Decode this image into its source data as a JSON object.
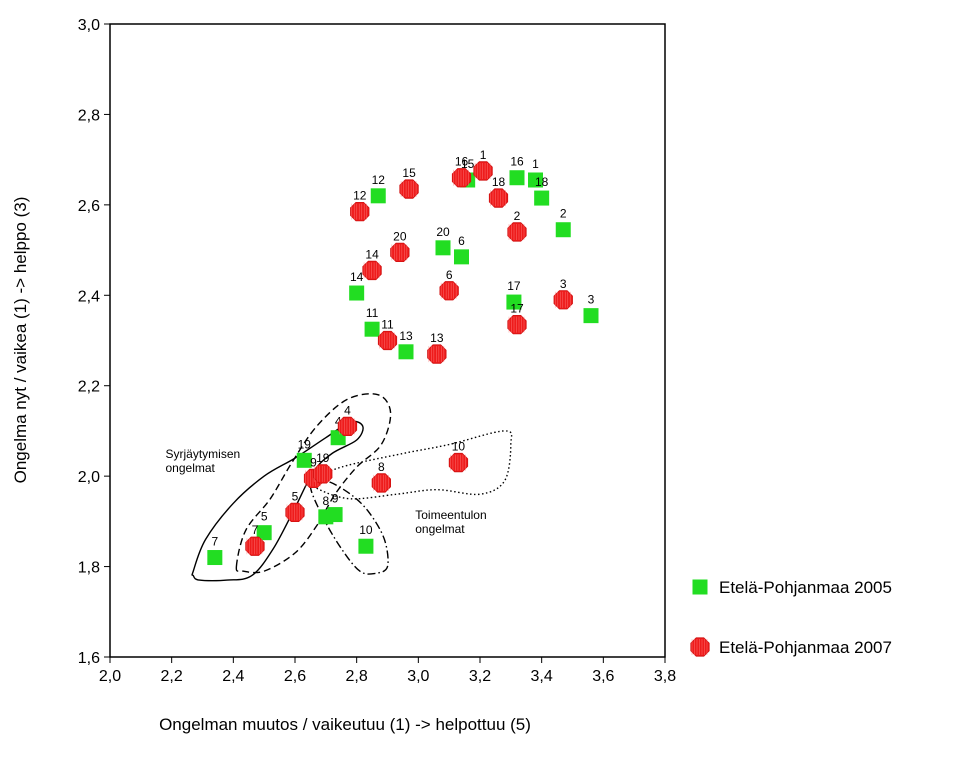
{
  "chart_data": {
    "type": "scatter",
    "title": "",
    "xlabel": "Ongelman muutos / vaikeutuu (1) -> helpottuu (5)",
    "ylabel": "Ongelma nyt / vaikea (1) -> helppo (3)",
    "xlim": [
      2.0,
      3.8
    ],
    "ylim": [
      1.6,
      3.0
    ],
    "x_ticks": [
      "2,0",
      "2,2",
      "2,4",
      "2,6",
      "2,8",
      "3,0",
      "3,2",
      "3,4",
      "3,6",
      "3,8"
    ],
    "y_ticks": [
      "1,6",
      "1,8",
      "2,0",
      "2,2",
      "2,4",
      "2,6",
      "2,8",
      "3,0"
    ],
    "grid": false,
    "legend_position": "right",
    "series": [
      {
        "name": "Etelä-Pohjanmaa 2005",
        "marker": "square",
        "color": "#22dd22",
        "points": [
          {
            "label": "1",
            "x": 3.38,
            "y": 2.655
          },
          {
            "label": "2",
            "x": 3.47,
            "y": 2.545
          },
          {
            "label": "3",
            "x": 3.56,
            "y": 2.355
          },
          {
            "label": "4",
            "x": 2.74,
            "y": 2.085
          },
          {
            "label": "5",
            "x": 2.5,
            "y": 1.875
          },
          {
            "label": "6",
            "x": 3.14,
            "y": 2.485
          },
          {
            "label": "7",
            "x": 2.34,
            "y": 1.82
          },
          {
            "label": "8",
            "x": 2.7,
            "y": 1.91
          },
          {
            "label": "9",
            "x": 2.73,
            "y": 1.915
          },
          {
            "label": "10",
            "x": 2.83,
            "y": 1.845
          },
          {
            "label": "11",
            "x": 2.85,
            "y": 2.325
          },
          {
            "label": "12",
            "x": 2.87,
            "y": 2.62
          },
          {
            "label": "13",
            "x": 2.96,
            "y": 2.275
          },
          {
            "label": "14",
            "x": 2.8,
            "y": 2.405
          },
          {
            "label": "15",
            "x": 3.16,
            "y": 2.655
          },
          {
            "label": "16",
            "x": 3.32,
            "y": 2.66
          },
          {
            "label": "17",
            "x": 3.31,
            "y": 2.385
          },
          {
            "label": "18",
            "x": 3.4,
            "y": 2.615
          },
          {
            "label": "19",
            "x": 2.63,
            "y": 2.035
          },
          {
            "label": "20",
            "x": 3.08,
            "y": 2.505
          }
        ]
      },
      {
        "name": "Etelä-Pohjanmaa 2007",
        "marker": "octagon",
        "color": "#ee1c1c",
        "points": [
          {
            "label": "1",
            "x": 3.21,
            "y": 2.675
          },
          {
            "label": "2",
            "x": 3.32,
            "y": 2.54
          },
          {
            "label": "3",
            "x": 3.47,
            "y": 2.39
          },
          {
            "label": "4",
            "x": 2.77,
            "y": 2.11
          },
          {
            "label": "5",
            "x": 2.6,
            "y": 1.92
          },
          {
            "label": "6",
            "x": 3.1,
            "y": 2.41
          },
          {
            "label": "7",
            "x": 2.47,
            "y": 1.845
          },
          {
            "label": "8",
            "x": 2.88,
            "y": 1.985
          },
          {
            "label": "9",
            "x": 2.66,
            "y": 1.995
          },
          {
            "label": "10",
            "x": 3.13,
            "y": 2.03
          },
          {
            "label": "11",
            "x": 2.9,
            "y": 2.3
          },
          {
            "label": "12",
            "x": 2.81,
            "y": 2.585
          },
          {
            "label": "13",
            "x": 3.06,
            "y": 2.27
          },
          {
            "label": "14",
            "x": 2.85,
            "y": 2.455
          },
          {
            "label": "15",
            "x": 2.97,
            "y": 2.635
          },
          {
            "label": "16",
            "x": 3.14,
            "y": 2.66
          },
          {
            "label": "17",
            "x": 3.32,
            "y": 2.335
          },
          {
            "label": "18",
            "x": 3.26,
            "y": 2.615
          },
          {
            "label": "19",
            "x": 2.69,
            "y": 2.005
          },
          {
            "label": "20",
            "x": 2.94,
            "y": 2.495
          }
        ]
      }
    ],
    "annotations": [
      {
        "name": "syrjaytymisen",
        "lines": [
          "Syrjäytymisen",
          "ongelmat"
        ],
        "x": 2.18,
        "y": 2.04
      },
      {
        "name": "toimeentulon",
        "lines": [
          "Toimeentulon",
          "ongelmat"
        ],
        "x": 2.99,
        "y": 1.905
      }
    ],
    "regions": [
      {
        "name": "syrjaytymisen-solid",
        "style": "solid",
        "points": [
          [
            2.27,
            1.79
          ],
          [
            2.31,
            1.86
          ],
          [
            2.4,
            1.94
          ],
          [
            2.5,
            2.0
          ],
          [
            2.6,
            2.04
          ],
          [
            2.7,
            2.085
          ],
          [
            2.78,
            2.12
          ],
          [
            2.82,
            2.11
          ],
          [
            2.8,
            2.08
          ],
          [
            2.72,
            2.05
          ],
          [
            2.66,
            2.01
          ],
          [
            2.6,
            1.93
          ],
          [
            2.53,
            1.84
          ],
          [
            2.46,
            1.78
          ],
          [
            2.38,
            1.77
          ],
          [
            2.29,
            1.77
          ],
          [
            2.27,
            1.78
          ]
        ]
      },
      {
        "name": "syrjaytymisen-dashed",
        "style": "dashed",
        "points": [
          [
            2.41,
            1.8
          ],
          [
            2.44,
            1.88
          ],
          [
            2.52,
            1.95
          ],
          [
            2.59,
            2.03
          ],
          [
            2.67,
            2.11
          ],
          [
            2.77,
            2.17
          ],
          [
            2.87,
            2.18
          ],
          [
            2.91,
            2.14
          ],
          [
            2.88,
            2.07
          ],
          [
            2.8,
            2.02
          ],
          [
            2.73,
            1.96
          ],
          [
            2.67,
            1.89
          ],
          [
            2.6,
            1.83
          ],
          [
            2.5,
            1.79
          ],
          [
            2.43,
            1.79
          ]
        ]
      },
      {
        "name": "toimeentulon-dotted",
        "style": "dotted",
        "points": [
          [
            2.66,
            1.99
          ],
          [
            2.75,
            2.02
          ],
          [
            2.95,
            2.05
          ],
          [
            3.1,
            2.07
          ],
          [
            3.28,
            2.1
          ],
          [
            3.3,
            2.07
          ],
          [
            3.28,
            1.99
          ],
          [
            3.2,
            1.96
          ],
          [
            3.06,
            1.97
          ],
          [
            2.93,
            1.96
          ],
          [
            2.78,
            1.95
          ],
          [
            2.68,
            1.97
          ]
        ]
      },
      {
        "name": "toimeentulon-dashdot",
        "style": "dashdot",
        "points": [
          [
            2.65,
            1.98
          ],
          [
            2.69,
            1.91
          ],
          [
            2.75,
            1.84
          ],
          [
            2.81,
            1.79
          ],
          [
            2.86,
            1.785
          ],
          [
            2.9,
            1.8
          ],
          [
            2.89,
            1.86
          ],
          [
            2.84,
            1.92
          ],
          [
            2.78,
            1.96
          ],
          [
            2.7,
            1.99
          ]
        ]
      }
    ]
  }
}
